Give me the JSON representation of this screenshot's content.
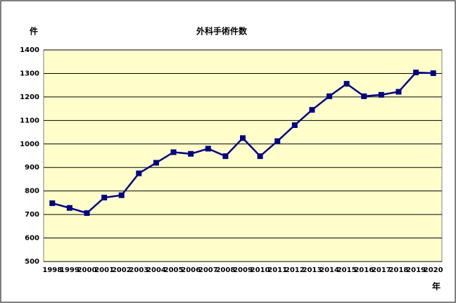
{
  "chart_data": {
    "type": "line",
    "title": "外科手術件数",
    "y_label": "件",
    "x_label": "年",
    "categories": [
      "1998",
      "1999",
      "2000",
      "2001",
      "2002",
      "2003",
      "2004",
      "2005",
      "2006",
      "2007",
      "2008",
      "2009",
      "2010",
      "2011",
      "2012",
      "2013",
      "2014",
      "2015",
      "2016",
      "2017",
      "2018",
      "2019",
      "2020"
    ],
    "series": [
      {
        "name": "外科手術件数",
        "color": "#000080",
        "values": [
          748,
          728,
          706,
          772,
          782,
          875,
          920,
          965,
          958,
          980,
          948,
          1025,
          948,
          1012,
          1080,
          1145,
          1203,
          1256,
          1203,
          1209,
          1222,
          1304,
          1301
        ]
      }
    ],
    "ylim": [
      500,
      1400
    ],
    "yticks": [
      500,
      600,
      700,
      800,
      900,
      1000,
      1100,
      1200,
      1300,
      1400
    ],
    "grid": true,
    "plot_background": "#ffffcc"
  }
}
